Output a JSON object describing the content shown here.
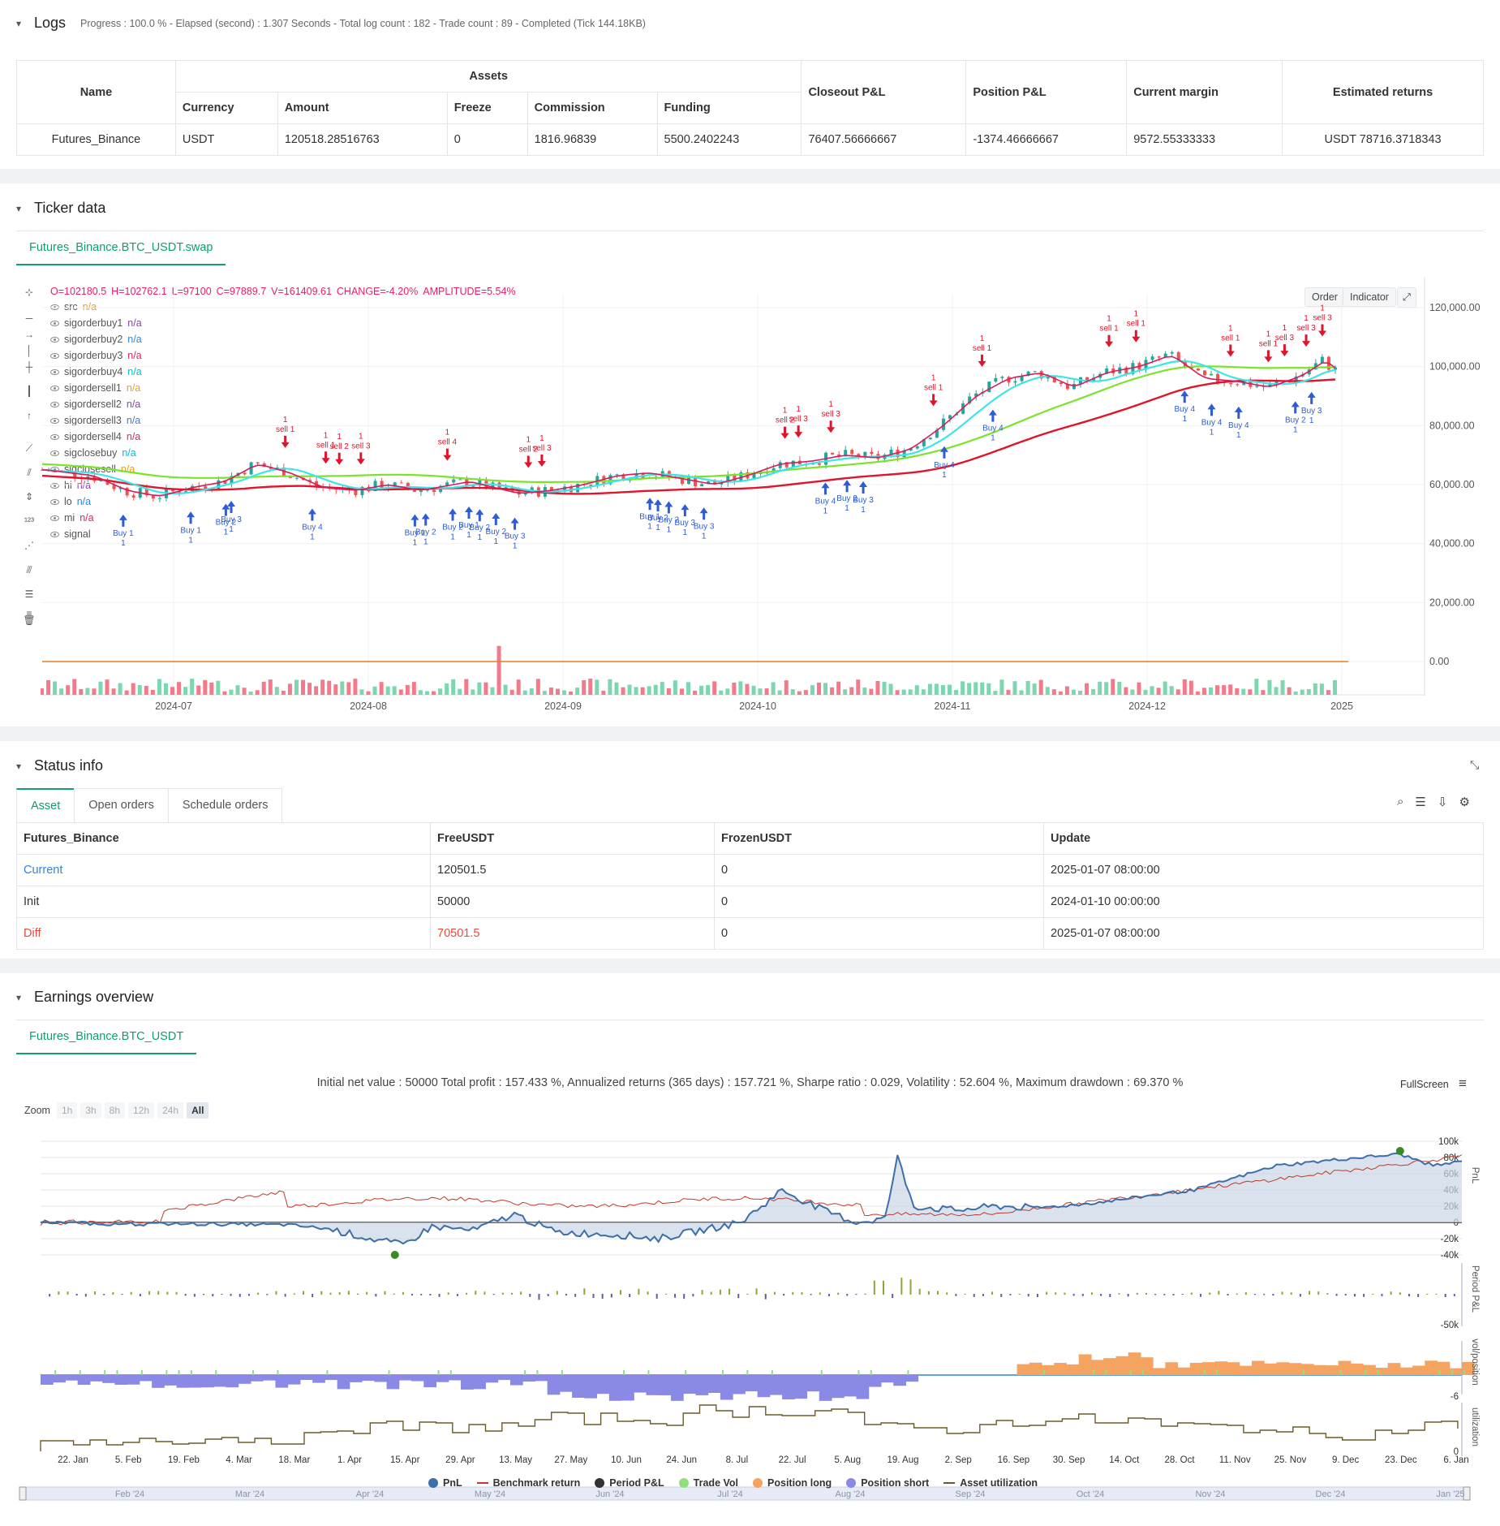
{
  "logs": {
    "title": "Logs",
    "meta": "Progress : 100.0 % - Elapsed (second) : 1.307 Seconds - Total log count : 182 - Trade count : 89 - Completed (Tick 144.18KB)",
    "table": {
      "name_header": "Name",
      "assets_header": "Assets",
      "sub_headers": [
        "Currency",
        "Amount",
        "Freeze",
        "Commission",
        "Funding"
      ],
      "closeout_header": "Closeout P&L",
      "position_header": "Position P&L",
      "margin_header": "Current margin",
      "returns_header": "Estimated returns",
      "row": {
        "name": "Futures_Binance",
        "currency": "USDT",
        "amount": "120518.28516763",
        "freeze": "0",
        "commission": "1816.96839",
        "funding": "5500.2402243",
        "closeout": "76407.56666667",
        "position": "-1374.46666667",
        "margin": "9572.55333333",
        "returns": "USDT 78716.3718343"
      }
    }
  },
  "ticker": {
    "title": "Ticker data",
    "tab": "Futures_Binance.BTC_USDT.swap",
    "ohlc": {
      "o": "O=102180.5",
      "h": "H=102762.1",
      "l": "L=97100",
      "c": "C=97889.7",
      "v": "V=161409.61",
      "change": "CHANGE=-4.20%",
      "amplitude": "AMPLITUDE=5.54%"
    },
    "order_btn": "Order",
    "indicator_btn": "Indicator",
    "legend": [
      {
        "name": "src",
        "val": "n/a",
        "color": "#f39c12"
      },
      {
        "name": "sigorderbuy1",
        "val": "n/a",
        "color": "#8e44ad"
      },
      {
        "name": "sigorderbuy2",
        "val": "n/a",
        "color": "#2e86de"
      },
      {
        "name": "sigorderbuy3",
        "val": "n/a",
        "color": "#e91e63"
      },
      {
        "name": "sigorderbuy4",
        "val": "n/a",
        "color": "#00bcd4"
      },
      {
        "name": "sigordersell1",
        "val": "n/a",
        "color": "#f39c12"
      },
      {
        "name": "sigordersell2",
        "val": "n/a",
        "color": "#8e44ad"
      },
      {
        "name": "sigordersell3",
        "val": "n/a",
        "color": "#2e86de"
      },
      {
        "name": "sigordersell4",
        "val": "n/a",
        "color": "#e91e63"
      },
      {
        "name": "sigclosebuy",
        "val": "n/a",
        "color": "#00bcd4"
      },
      {
        "name": "sigclosesell",
        "val": "n/a",
        "color": "#f39c12"
      },
      {
        "name": "hi",
        "val": "n/a",
        "color": "#8e44ad"
      },
      {
        "name": "lo",
        "val": "n/a",
        "color": "#2e86de"
      },
      {
        "name": "mi",
        "val": "n/a",
        "color": "#e91e63"
      },
      {
        "name": "signal",
        "val": "",
        "color": "#00bcd4"
      }
    ],
    "y_ticks": [
      "120,000.00",
      "100,000.00",
      "80,000.00",
      "60,000.00",
      "40,000.00",
      "20,000.00",
      "0.00"
    ],
    "x_ticks": [
      "2024-07",
      "2024-08",
      "2024-09",
      "2024-10",
      "2024-11",
      "2024-12",
      "2025"
    ]
  },
  "status": {
    "title": "Status info",
    "tabs": [
      "Asset",
      "Open orders",
      "Schedule orders"
    ],
    "headers": [
      "Futures_Binance",
      "FreeUSDT",
      "FrozenUSDT",
      "Update"
    ],
    "rows": [
      {
        "label": "Current",
        "free": "120501.5",
        "frozen": "0",
        "update": "2025-01-07 08:00:00"
      },
      {
        "label": "Init",
        "free": "50000",
        "frozen": "0",
        "update": "2024-01-10 00:00:00"
      },
      {
        "label": "Diff",
        "free": "70501.5",
        "frozen": "0",
        "update": "2025-01-07 08:00:00"
      }
    ]
  },
  "earnings": {
    "title": "Earnings overview",
    "tab": "Futures_Binance.BTC_USDT",
    "summary": "Initial net value : 50000 Total profit : 157.433 %, Annualized returns (365 days) : 157.721 %, Sharpe ratio : 0.029, Volatility : 52.604 %, Maximum drawdown : 69.370 %",
    "fullscreen": "FullScreen",
    "zoom_label": "Zoom",
    "zoom_options": [
      "1h",
      "3h",
      "8h",
      "12h",
      "24h",
      "All"
    ],
    "pnl_ticks": [
      "100k",
      "80k",
      "60k",
      "40k",
      "20k",
      "0",
      "-20k",
      "-40k"
    ],
    "period_ticks": [
      "-50k"
    ],
    "vol_ticks": [
      "-6"
    ],
    "util_ticks": [
      "0"
    ],
    "axis_titles": [
      "PnL",
      "Period P&L",
      "vol/position",
      "utilization"
    ],
    "x_ticks": [
      "22. Jan",
      "5. Feb",
      "19. Feb",
      "4. Mar",
      "18. Mar",
      "1. Apr",
      "15. Apr",
      "29. Apr",
      "13. May",
      "27. May",
      "10. Jun",
      "24. Jun",
      "8. Jul",
      "22. Jul",
      "5. Aug",
      "19. Aug",
      "2. Sep",
      "16. Sep",
      "30. Sep",
      "14. Oct",
      "28. Oct",
      "11. Nov",
      "25. Nov",
      "9. Dec",
      "23. Dec",
      "6. Jan"
    ],
    "navigator_ticks": [
      "Feb '24",
      "Mar '24",
      "Apr '24",
      "May '24",
      "Jun '24",
      "Jul '24",
      "Aug '24",
      "Sep '24",
      "Oct '24",
      "Nov '24",
      "Dec '24",
      "Jan '25"
    ],
    "legend": [
      {
        "label": "PnL",
        "color": "#3d6ea8",
        "kind": "dot"
      },
      {
        "label": "Benchmark return",
        "color": "#c0392b",
        "kind": "dash"
      },
      {
        "label": "Period P&L",
        "color": "#333333",
        "kind": "dot"
      },
      {
        "label": "Trade Vol",
        "color": "#8fe07a",
        "kind": "dot"
      },
      {
        "label": "Position long",
        "color": "#f4a460",
        "kind": "dot"
      },
      {
        "label": "Position short",
        "color": "#8a8ae6",
        "kind": "dot"
      },
      {
        "label": "Asset utilization",
        "color": "#6b5b2a",
        "kind": "dash"
      }
    ]
  }
}
